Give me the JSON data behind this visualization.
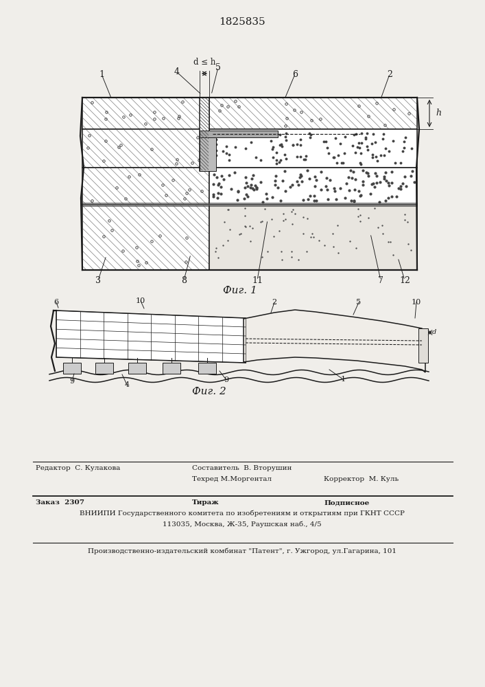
{
  "title": "1825835",
  "fig1_caption": "Фиг. 1",
  "fig2_caption": "Фиг. 2",
  "bg_color": "#f0eeea",
  "line_color": "#1a1a1a",
  "footer_last": "Производственно-издательский комбинат \"Патент\", г. Ужгород, ул.Гагарина, 101"
}
